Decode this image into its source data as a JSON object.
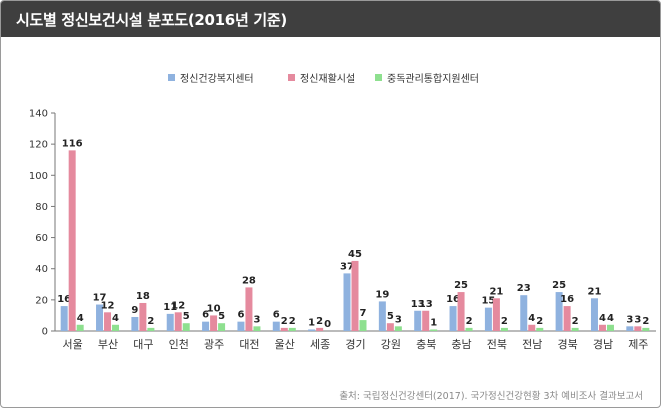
{
  "title": "시도별 정신보건시설 분포도(2016년 기준)",
  "source": "출처: 국립정신건강센터(2017). 국가정신건강현황 3차 예비조사 결과보고서",
  "chart_data": {
    "type": "bar",
    "categories": [
      "서울",
      "부산",
      "대구",
      "인천",
      "광주",
      "대전",
      "울산",
      "세종",
      "경기",
      "강원",
      "충북",
      "충남",
      "전북",
      "전남",
      "경북",
      "경남",
      "제주"
    ],
    "series": [
      {
        "name": "정신건강복지센터",
        "color": "#8fb2df",
        "values": [
          16,
          17,
          9,
          11,
          6,
          6,
          6,
          1,
          37,
          19,
          13,
          16,
          15,
          23,
          25,
          21,
          3
        ]
      },
      {
        "name": "정신재활시설",
        "color": "#e58a9e",
        "values": [
          116,
          12,
          18,
          12,
          10,
          28,
          2,
          2,
          45,
          5,
          13,
          25,
          21,
          4,
          16,
          4,
          3
        ]
      },
      {
        "name": "중독관리통합지원센터",
        "color": "#8ee08f",
        "values": [
          4,
          4,
          2,
          5,
          5,
          3,
          2,
          0,
          7,
          3,
          1,
          2,
          2,
          2,
          2,
          4,
          2
        ]
      }
    ],
    "ylim": [
      0,
      140
    ],
    "yticks": [
      0,
      20,
      40,
      60,
      80,
      100,
      120,
      140
    ],
    "grid": false,
    "legend": "top-center"
  }
}
